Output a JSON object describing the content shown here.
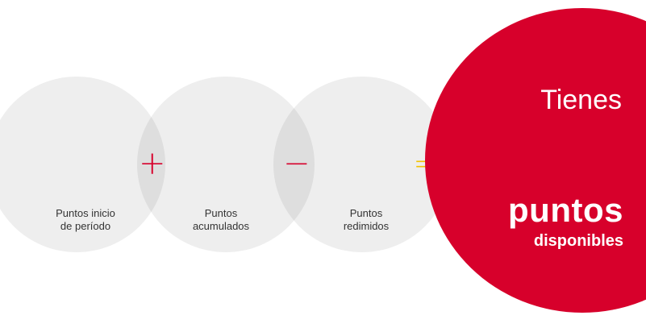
{
  "steps": [
    {
      "line1": "Puntos inicio",
      "line2": "de período"
    },
    {
      "line1": "Puntos",
      "line2": "acumulados"
    },
    {
      "line1": "Puntos",
      "line2": "redimidos"
    }
  ],
  "operators": {
    "plus": "+",
    "minus": "−",
    "equals": "="
  },
  "result": {
    "intro": "Tienes",
    "title": "puntos",
    "subtitle": "disponibles"
  },
  "colors": {
    "accent_red": "#d7002b",
    "equals_yellow": "#f2c200",
    "circle_gray": "#efefef",
    "text_dark": "#333333"
  }
}
